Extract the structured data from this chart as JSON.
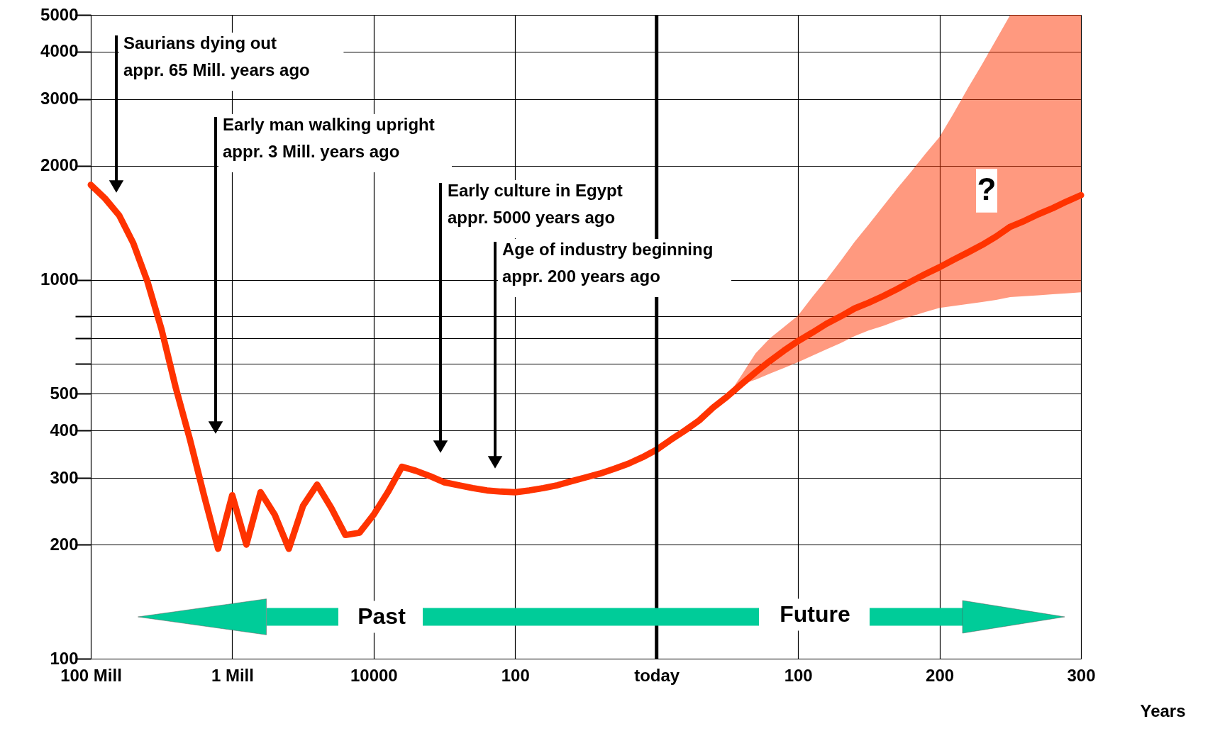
{
  "chart_data": {
    "type": "line",
    "xlabel": "Years",
    "log": "y",
    "grid": true,
    "categories": [
      "100 Mill",
      null,
      null,
      null,
      null,
      null,
      null,
      null,
      null,
      null,
      "1 Mill",
      null,
      null,
      null,
      null,
      null,
      null,
      null,
      null,
      null,
      "10000",
      null,
      null,
      null,
      null,
      null,
      null,
      null,
      null,
      null,
      "100",
      null,
      null,
      null,
      null,
      null,
      null,
      null,
      null,
      null,
      "today",
      null,
      null,
      null,
      null,
      null,
      null,
      null,
      null,
      null,
      "100",
      null,
      null,
      null,
      null,
      null,
      null,
      null,
      null,
      null,
      "200",
      null,
      null,
      null,
      null,
      null,
      null,
      null,
      null,
      null,
      "300"
    ],
    "ylim": [
      100,
      5000
    ],
    "yticks": [
      100,
      200,
      300,
      400,
      500,
      {
        "value": 600,
        "label": null
      },
      {
        "value": 700,
        "label": null
      },
      {
        "value": 800,
        "label": null
      },
      1000,
      2000,
      3000,
      4000,
      5000
    ],
    "series": [
      {
        "color": "#ff3300",
        "values": [
          1780,
          1640,
          1480,
          1250,
          990,
          740,
          520,
          380,
          270,
          195,
          270,
          200,
          275,
          240,
          195,
          253,
          288,
          250,
          212,
          215,
          240,
          275,
          321,
          313,
          303,
          292,
          287,
          282,
          278,
          276,
          275,
          278,
          282,
          287,
          294,
          301,
          308,
          317,
          327,
          340,
          356,
          378,
          400,
          425,
          460,
          492,
          530,
          570,
          610,
          650,
          689,
          725,
          765,
          800,
          840,
          870,
          905,
          945,
          990,
          1035,
          1079,
          1130,
          1180,
          1235,
          1300,
          1380,
          1430,
          1490,
          1545,
          1610,
          1672
        ],
        "lower": [
          null,
          null,
          null,
          null,
          null,
          null,
          null,
          null,
          null,
          null,
          null,
          null,
          null,
          null,
          null,
          null,
          null,
          null,
          null,
          null,
          null,
          null,
          null,
          null,
          null,
          null,
          null,
          null,
          null,
          null,
          null,
          null,
          null,
          null,
          null,
          null,
          null,
          null,
          null,
          null,
          null,
          null,
          null,
          null,
          null,
          492,
          530,
          545,
          565,
          585,
          606,
          630,
          655,
          680,
          710,
          735,
          755,
          780,
          800,
          822,
          843,
          853,
          863,
          873,
          885,
          900,
          905,
          910,
          916,
          921,
          927
        ],
        "upper": [
          null,
          null,
          null,
          null,
          null,
          null,
          null,
          null,
          null,
          null,
          null,
          null,
          null,
          null,
          null,
          null,
          null,
          null,
          null,
          null,
          null,
          null,
          null,
          null,
          null,
          null,
          null,
          null,
          null,
          null,
          null,
          null,
          null,
          null,
          null,
          null,
          null,
          null,
          null,
          null,
          null,
          null,
          null,
          null,
          null,
          492,
          560,
          640,
          700,
          750,
          805,
          900,
          1000,
          1120,
          1260,
          1400,
          1560,
          1740,
          1930,
          2150,
          2380,
          2750,
          3200,
          3700,
          4300,
          5000,
          5000,
          5000,
          5000,
          5000,
          5000
        ]
      }
    ],
    "ref_lines": [
      {
        "axis": "x",
        "value": "today"
      }
    ],
    "annotations": [
      "Saurians dying out\nappr. 65 Mill. years ago",
      "Early man walking upright\nappr. 3 Mill. years ago",
      "Early culture in Egypt\nappr. 5000 years ago",
      "Age of industry beginning\nappr. 200 years ago",
      "?",
      "Past",
      "Future"
    ]
  }
}
